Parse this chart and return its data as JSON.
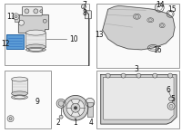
{
  "bg_color": "#ffffff",
  "line_color": "#444444",
  "part_fill": "#e8e8e8",
  "part_fill2": "#d0d0d0",
  "blue_fill": "#5b9bd5",
  "blue_edge": "#2060a0",
  "box_edge": "#999999",
  "box_fill": "#fafafa",
  "label_color": "#111111",
  "fig_w": 2.0,
  "fig_h": 1.47,
  "dpi": 100
}
